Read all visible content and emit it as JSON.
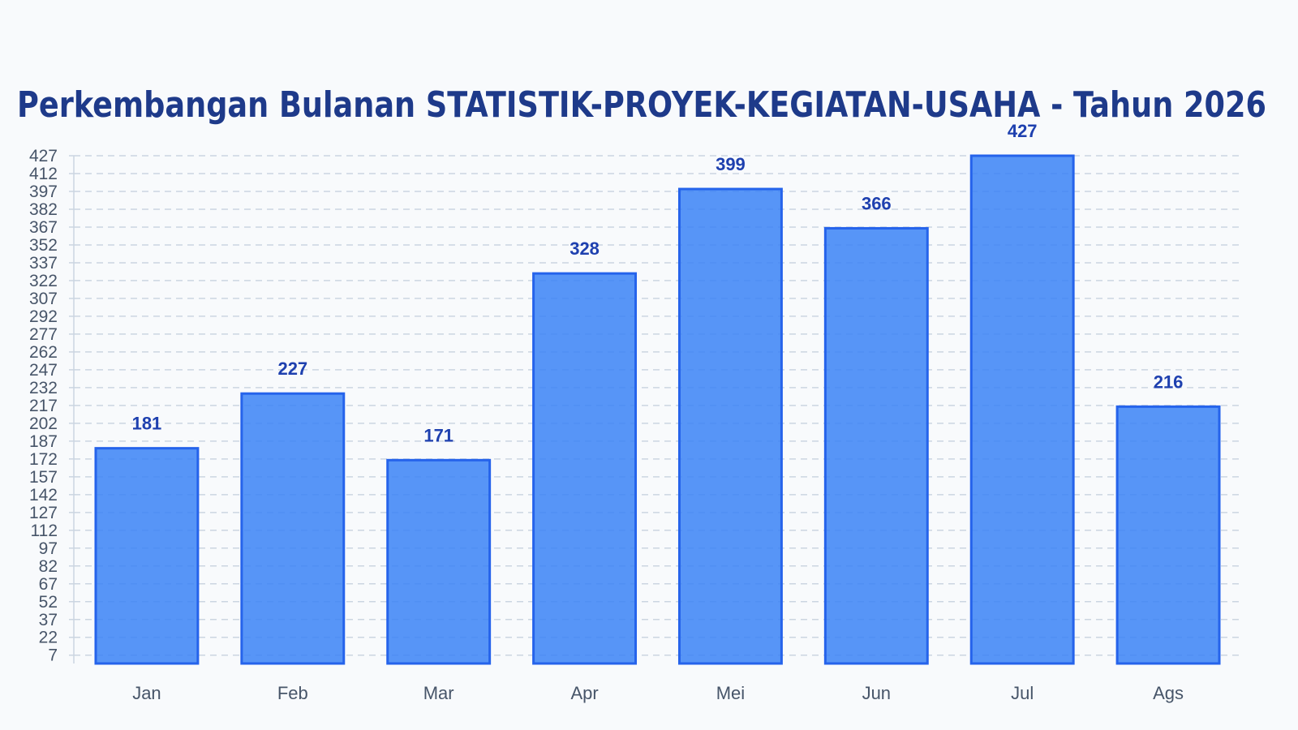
{
  "chart_data": {
    "type": "bar",
    "title": "Perkembangan Bulanan STATISTIK-PROYEK-KEGIATAN-USAHA - Tahun 2026",
    "xlabel": "",
    "ylabel": "",
    "categories": [
      "Jan",
      "Feb",
      "Mar",
      "Apr",
      "Mei",
      "Jun",
      "Jul",
      "Ags"
    ],
    "values": [
      181,
      227,
      171,
      328,
      399,
      366,
      427,
      216
    ],
    "ylim": [
      0,
      427
    ],
    "yticks": [
      7,
      22,
      37,
      52,
      67,
      82,
      97,
      112,
      127,
      142,
      157,
      172,
      187,
      202,
      217,
      232,
      247,
      262,
      277,
      292,
      307,
      322,
      337,
      352,
      367,
      382,
      397,
      412,
      427
    ],
    "grid": true,
    "legend": "none",
    "colors": {
      "bar_fill": "#3b82f6",
      "bar_stroke": "#2563eb",
      "value_label": "#1e40af",
      "title": "#1e3a8a",
      "grid": "#cbd5e1",
      "axis": "#cbd5e1",
      "tick_text": "#475569"
    }
  }
}
